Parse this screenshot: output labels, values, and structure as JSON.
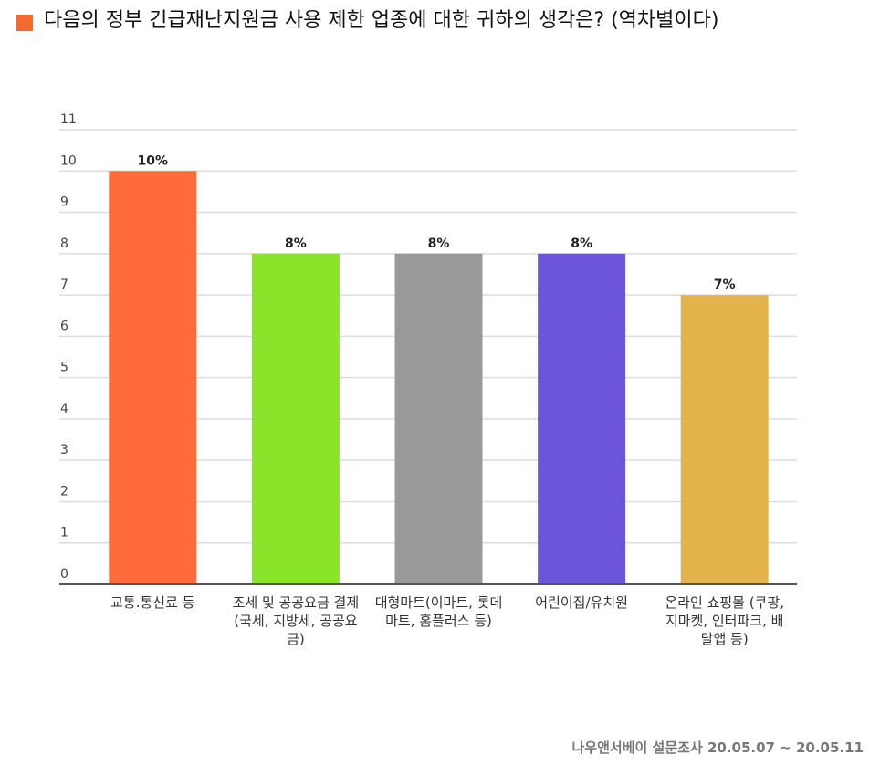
{
  "chart_data": {
    "type": "bar",
    "title": "다음의 정부 긴급재난지원금 사용 제한 업종에 대한 귀하의 생각은? (역차별이다)",
    "categories": [
      "교통.통신료 등",
      "조세 및 공공요금 결제(국세, 지방세, 공공요금)",
      "대형마트(이마트, 롯데마트, 홈플러스 등)",
      "어린이집/유치원",
      "온라인 쇼핑몰 (쿠팡, 지마켓, 인터파크, 배달앱 등)"
    ],
    "values": [
      10,
      8,
      8,
      8,
      7
    ],
    "value_labels": [
      "10%",
      "8%",
      "8%",
      "8%",
      "7%"
    ],
    "colors": [
      "#ff6b3a",
      "#8ae52a",
      "#999999",
      "#6d55db",
      "#e3b44c"
    ],
    "legend_color": "#f26a2e",
    "ylim": [
      0,
      11
    ],
    "yticks": [
      0,
      1,
      2,
      3,
      4,
      5,
      6,
      7,
      8,
      9,
      10,
      11
    ],
    "grid": true,
    "source": "나우앤서베이 설문조사 20.05.07 ~ 20.05.11"
  }
}
